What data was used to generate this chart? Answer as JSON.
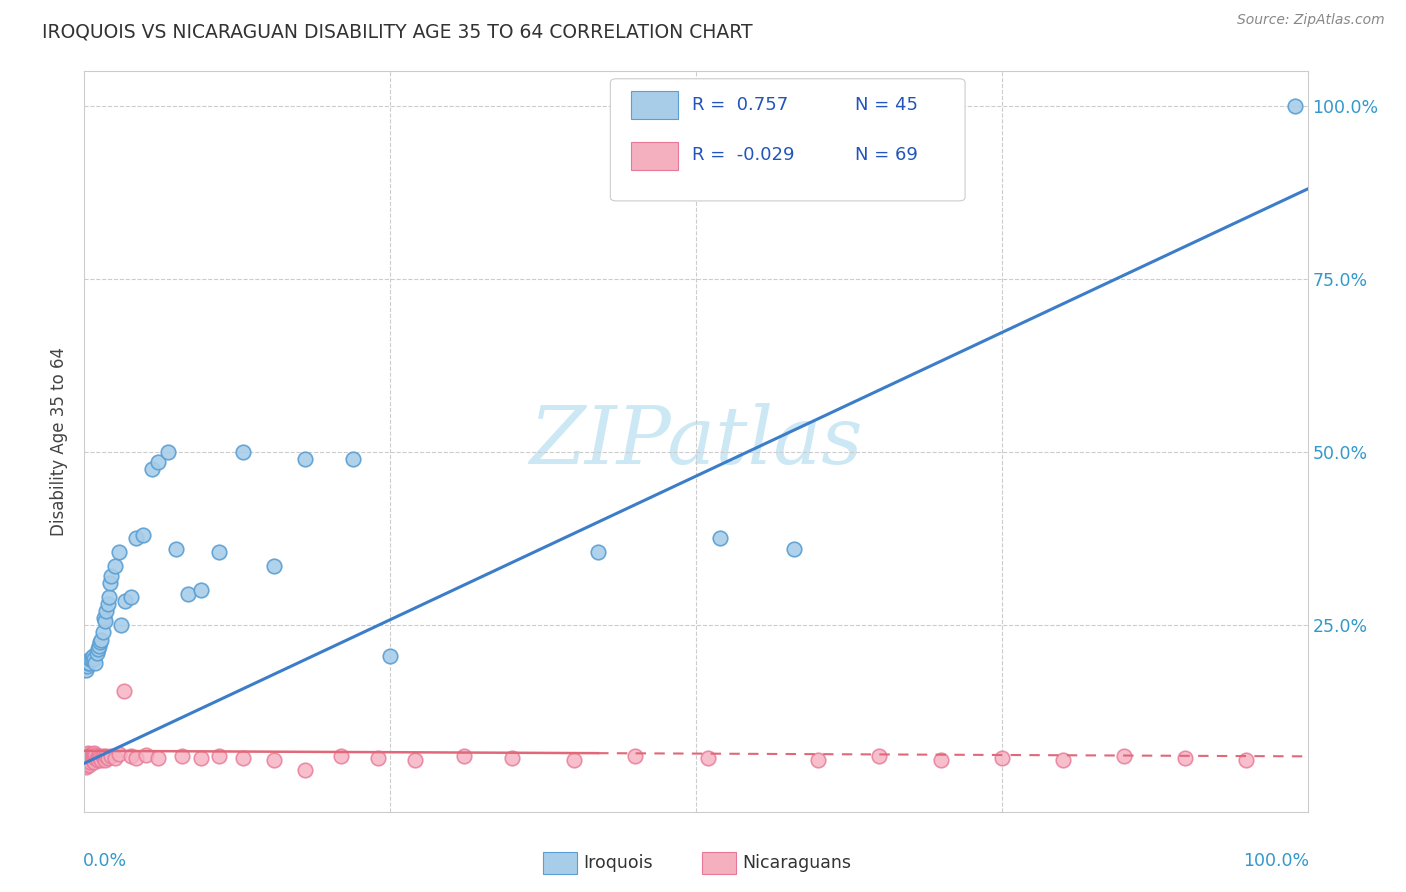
{
  "title": "IROQUOIS VS NICARAGUAN DISABILITY AGE 35 TO 64 CORRELATION CHART",
  "source": "Source: ZipAtlas.com",
  "ylabel": "Disability Age 35 to 64",
  "iroquois_color_face": "#a8cde8",
  "iroquois_color_edge": "#5a9fd4",
  "nicaraguan_color_face": "#f5b0c0",
  "nicaraguan_color_edge": "#e87898",
  "iroquois_line_color": "#3b7dc8",
  "nicaraguan_line_color": "#e06878",
  "watermark_color": "#cde8f5",
  "legend_r1": "0.757",
  "legend_r2": "-0.029",
  "legend_n1": "45",
  "legend_n2": "69",
  "iroquois_x": [
    0.001,
    0.002,
    0.003,
    0.004,
    0.005,
    0.006,
    0.007,
    0.008,
    0.009,
    0.01,
    0.011,
    0.012,
    0.013,
    0.014,
    0.015,
    0.016,
    0.017,
    0.018,
    0.019,
    0.02,
    0.021,
    0.022,
    0.025,
    0.028,
    0.03,
    0.033,
    0.038,
    0.042,
    0.048,
    0.055,
    0.06,
    0.068,
    0.075,
    0.085,
    0.095,
    0.11,
    0.13,
    0.155,
    0.18,
    0.22,
    0.25,
    0.42,
    0.52,
    0.58,
    0.99
  ],
  "iroquois_y": [
    0.185,
    0.19,
    0.195,
    0.195,
    0.2,
    0.2,
    0.205,
    0.2,
    0.195,
    0.21,
    0.215,
    0.22,
    0.225,
    0.228,
    0.24,
    0.26,
    0.255,
    0.27,
    0.28,
    0.29,
    0.31,
    0.32,
    0.335,
    0.355,
    0.25,
    0.285,
    0.29,
    0.375,
    0.38,
    0.475,
    0.485,
    0.5,
    0.36,
    0.295,
    0.3,
    0.355,
    0.5,
    0.335,
    0.49,
    0.49,
    0.205,
    0.355,
    0.375,
    0.36,
    1.0
  ],
  "nicaraguan_x": [
    0.001,
    0.001,
    0.001,
    0.001,
    0.001,
    0.002,
    0.002,
    0.002,
    0.002,
    0.002,
    0.003,
    0.003,
    0.003,
    0.003,
    0.004,
    0.004,
    0.004,
    0.004,
    0.005,
    0.005,
    0.005,
    0.006,
    0.006,
    0.007,
    0.007,
    0.008,
    0.008,
    0.009,
    0.009,
    0.01,
    0.011,
    0.012,
    0.013,
    0.014,
    0.015,
    0.016,
    0.017,
    0.018,
    0.019,
    0.022,
    0.025,
    0.028,
    0.032,
    0.038,
    0.042,
    0.05,
    0.06,
    0.08,
    0.095,
    0.11,
    0.13,
    0.155,
    0.18,
    0.21,
    0.24,
    0.27,
    0.31,
    0.35,
    0.4,
    0.45,
    0.51,
    0.6,
    0.65,
    0.7,
    0.75,
    0.8,
    0.85,
    0.9,
    0.95
  ],
  "nicaraguan_y": [
    0.05,
    0.055,
    0.048,
    0.058,
    0.045,
    0.052,
    0.06,
    0.048,
    0.056,
    0.063,
    0.055,
    0.06,
    0.05,
    0.065,
    0.053,
    0.058,
    0.062,
    0.048,
    0.055,
    0.06,
    0.052,
    0.057,
    0.063,
    0.055,
    0.06,
    0.052,
    0.065,
    0.057,
    0.062,
    0.058,
    0.055,
    0.06,
    0.058,
    0.055,
    0.06,
    0.058,
    0.055,
    0.06,
    0.057,
    0.06,
    0.058,
    0.063,
    0.155,
    0.06,
    0.058,
    0.062,
    0.058,
    0.06,
    0.058,
    0.06,
    0.058,
    0.055,
    0.04,
    0.06,
    0.058,
    0.055,
    0.06,
    0.058,
    0.055,
    0.06,
    0.058,
    0.055,
    0.06,
    0.055,
    0.058,
    0.055,
    0.06,
    0.058,
    0.055
  ],
  "xlim": [
    0.0,
    1.0
  ],
  "ylim": [
    -0.02,
    1.05
  ]
}
